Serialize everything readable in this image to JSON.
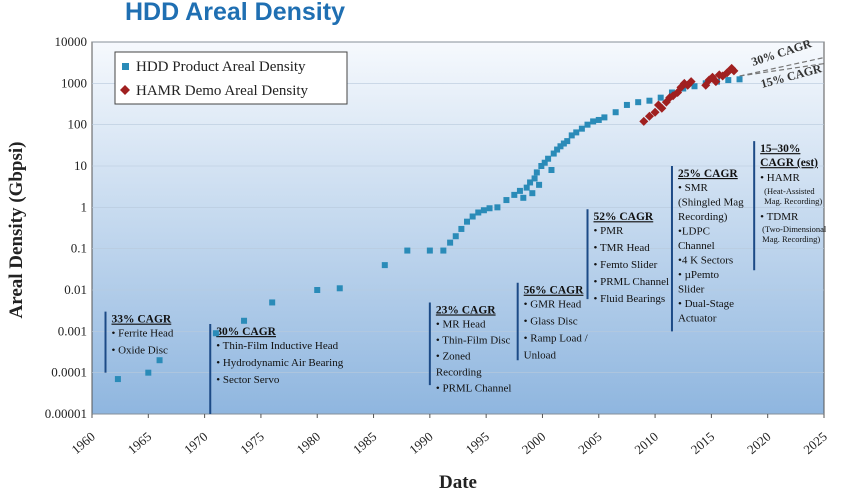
{
  "title": "HDD Areal Density",
  "chart_data": {
    "type": "scatter",
    "title": "HDD Areal Density",
    "xlabel": "Date",
    "ylabel": "Areal Density  (Gbpsi)",
    "xlim": [
      1960,
      2025
    ],
    "ylim": [
      1e-05,
      10000
    ],
    "yscale": "log",
    "x_ticks": [
      "1960",
      "1965",
      "1970",
      "1975",
      "1980",
      "1985",
      "1990",
      "1995",
      "2000",
      "2005",
      "2010",
      "2015",
      "2020",
      "2025"
    ],
    "y_ticks": [
      "10000",
      "1000",
      "100",
      "10",
      "1",
      "0.1",
      "0.01",
      "0.001",
      "0.0001",
      "0.00001"
    ],
    "legend": [
      "HDD Product Areal Density",
      "HAMR Demo Areal Density"
    ],
    "series": [
      {
        "name": "HDD Product Areal Density",
        "color": "#2a8bb8",
        "marker": "square",
        "points": [
          [
            1962.3,
            7e-05
          ],
          [
            1965.0,
            0.0001
          ],
          [
            1966.0,
            0.0002
          ],
          [
            1971.0,
            0.0009
          ],
          [
            1973.5,
            0.0018
          ],
          [
            1976.0,
            0.005
          ],
          [
            1980.0,
            0.01
          ],
          [
            1982.0,
            0.011
          ],
          [
            1986.0,
            0.04
          ],
          [
            1988.0,
            0.09
          ],
          [
            1990.0,
            0.09
          ],
          [
            1991.2,
            0.09
          ],
          [
            1991.8,
            0.14
          ],
          [
            1992.3,
            0.2
          ],
          [
            1992.8,
            0.3
          ],
          [
            1993.3,
            0.45
          ],
          [
            1993.8,
            0.6
          ],
          [
            1994.3,
            0.75
          ],
          [
            1994.8,
            0.85
          ],
          [
            1995.3,
            0.95
          ],
          [
            1996.0,
            1.0
          ],
          [
            1996.8,
            1.5
          ],
          [
            1997.5,
            2.0
          ],
          [
            1998.0,
            2.5
          ],
          [
            1998.3,
            1.7
          ],
          [
            1998.6,
            3.0
          ],
          [
            1998.9,
            4.0
          ],
          [
            1999.1,
            2.2
          ],
          [
            1999.3,
            5.0
          ],
          [
            1999.5,
            7.0
          ],
          [
            1999.7,
            3.5
          ],
          [
            1999.9,
            10.0
          ],
          [
            2000.2,
            12.0
          ],
          [
            2000.5,
            15.0
          ],
          [
            2000.8,
            8.0
          ],
          [
            2001.0,
            20.0
          ],
          [
            2001.3,
            25.0
          ],
          [
            2001.6,
            30.0
          ],
          [
            2001.9,
            35.0
          ],
          [
            2002.2,
            40.0
          ],
          [
            2002.6,
            55.0
          ],
          [
            2003.0,
            65.0
          ],
          [
            2003.5,
            80.0
          ],
          [
            2004.0,
            100.0
          ],
          [
            2004.5,
            120.0
          ],
          [
            2005.0,
            130.0
          ],
          [
            2005.5,
            150.0
          ],
          [
            2006.5,
            200.0
          ],
          [
            2007.5,
            300.0
          ],
          [
            2008.5,
            350.0
          ],
          [
            2009.5,
            380.0
          ],
          [
            2010.5,
            450.0
          ],
          [
            2011.5,
            600.0
          ],
          [
            2012.5,
            750.0
          ],
          [
            2013.5,
            850.0
          ],
          [
            2014.5,
            1000.0
          ],
          [
            2015.5,
            1100.0
          ],
          [
            2016.5,
            1200.0
          ],
          [
            2017.5,
            1250.0
          ]
        ]
      },
      {
        "name": "HAMR Demo Areal Density",
        "color": "#a02020",
        "marker": "diamond",
        "points": [
          [
            2009.0,
            120.0
          ],
          [
            2009.5,
            160.0
          ],
          [
            2010.0,
            200.0
          ],
          [
            2010.3,
            300.0
          ],
          [
            2010.6,
            250.0
          ],
          [
            2011.0,
            350.0
          ],
          [
            2011.3,
            450.0
          ],
          [
            2011.6,
            500.0
          ],
          [
            2012.0,
            600.0
          ],
          [
            2012.3,
            800.0
          ],
          [
            2012.6,
            1000.0
          ],
          [
            2012.9,
            900.0
          ],
          [
            2013.2,
            1100.0
          ],
          [
            2014.5,
            900.0
          ],
          [
            2014.8,
            1200.0
          ],
          [
            2015.1,
            1400.0
          ],
          [
            2015.4,
            1100.0
          ],
          [
            2015.7,
            1600.0
          ],
          [
            2016.0,
            1500.0
          ],
          [
            2016.4,
            1800.0
          ],
          [
            2016.8,
            2300.0
          ],
          [
            2017.0,
            2000.0
          ]
        ]
      }
    ],
    "annotations": [
      {
        "x": 1961.2,
        "y_top": 0.003,
        "y_bot": 0.0001,
        "head": "33% CAGR",
        "items": [
          "• Ferrite Head",
          "• Oxide Disc"
        ]
      },
      {
        "x": 1970.5,
        "y_top": 0.0015,
        "y_bot": 1e-05,
        "head": "30% CAGR",
        "items": [
          "• Thin-Film Inductive Head",
          "• Hydrodynamic  Air Bearing",
          "• Sector Servo"
        ]
      },
      {
        "x": 1990.0,
        "y_top": 0.005,
        "y_bot": 5e-05,
        "head": "23% CAGR",
        "items": [
          "• MR  Head",
          "• Thin-Film Disc",
          "• Zoned",
          "  Recording",
          "• PRML Channel"
        ]
      },
      {
        "x": 1997.8,
        "y_top": 0.015,
        "y_bot": 0.0002,
        "head": "56% CAGR",
        "items": [
          "• GMR Head",
          "• Glass Disc",
          "• Ramp Load /",
          "  Unload"
        ]
      },
      {
        "x": 2004.0,
        "y_top": 0.9,
        "y_bot": 0.006,
        "head": "52% CAGR",
        "items": [
          "• PMR",
          "• TMR Head",
          "• Femto Slider",
          "• PRML Channel",
          "• Fluid Bearings"
        ]
      },
      {
        "x": 2011.5,
        "y_top": 10,
        "y_bot": 0.001,
        "head": "25% CAGR",
        "items": [
          "• SMR",
          "  (Shingled Mag",
          "  Recording)",
          "•LDPC",
          "Channel",
          "•4 K Sectors",
          "• µPemto",
          "Slider",
          "• Dual-Stage",
          "Actuator"
        ]
      },
      {
        "x": 2018.8,
        "y_top": 40,
        "y_bot": 0.03,
        "head": "15–30%",
        "head2": "CAGR (est)",
        "items": [
          "• HAMR"
        ],
        "small1": [
          "(Heat-Assisted",
          "Mag. Recording)"
        ],
        "items2": [
          "• TDMR"
        ],
        "small2": [
          "(Two-Dimensional",
          "Mag. Recording)"
        ]
      }
    ],
    "cagr_labels": [
      "30% CAGR",
      "15% CAGR"
    ]
  }
}
